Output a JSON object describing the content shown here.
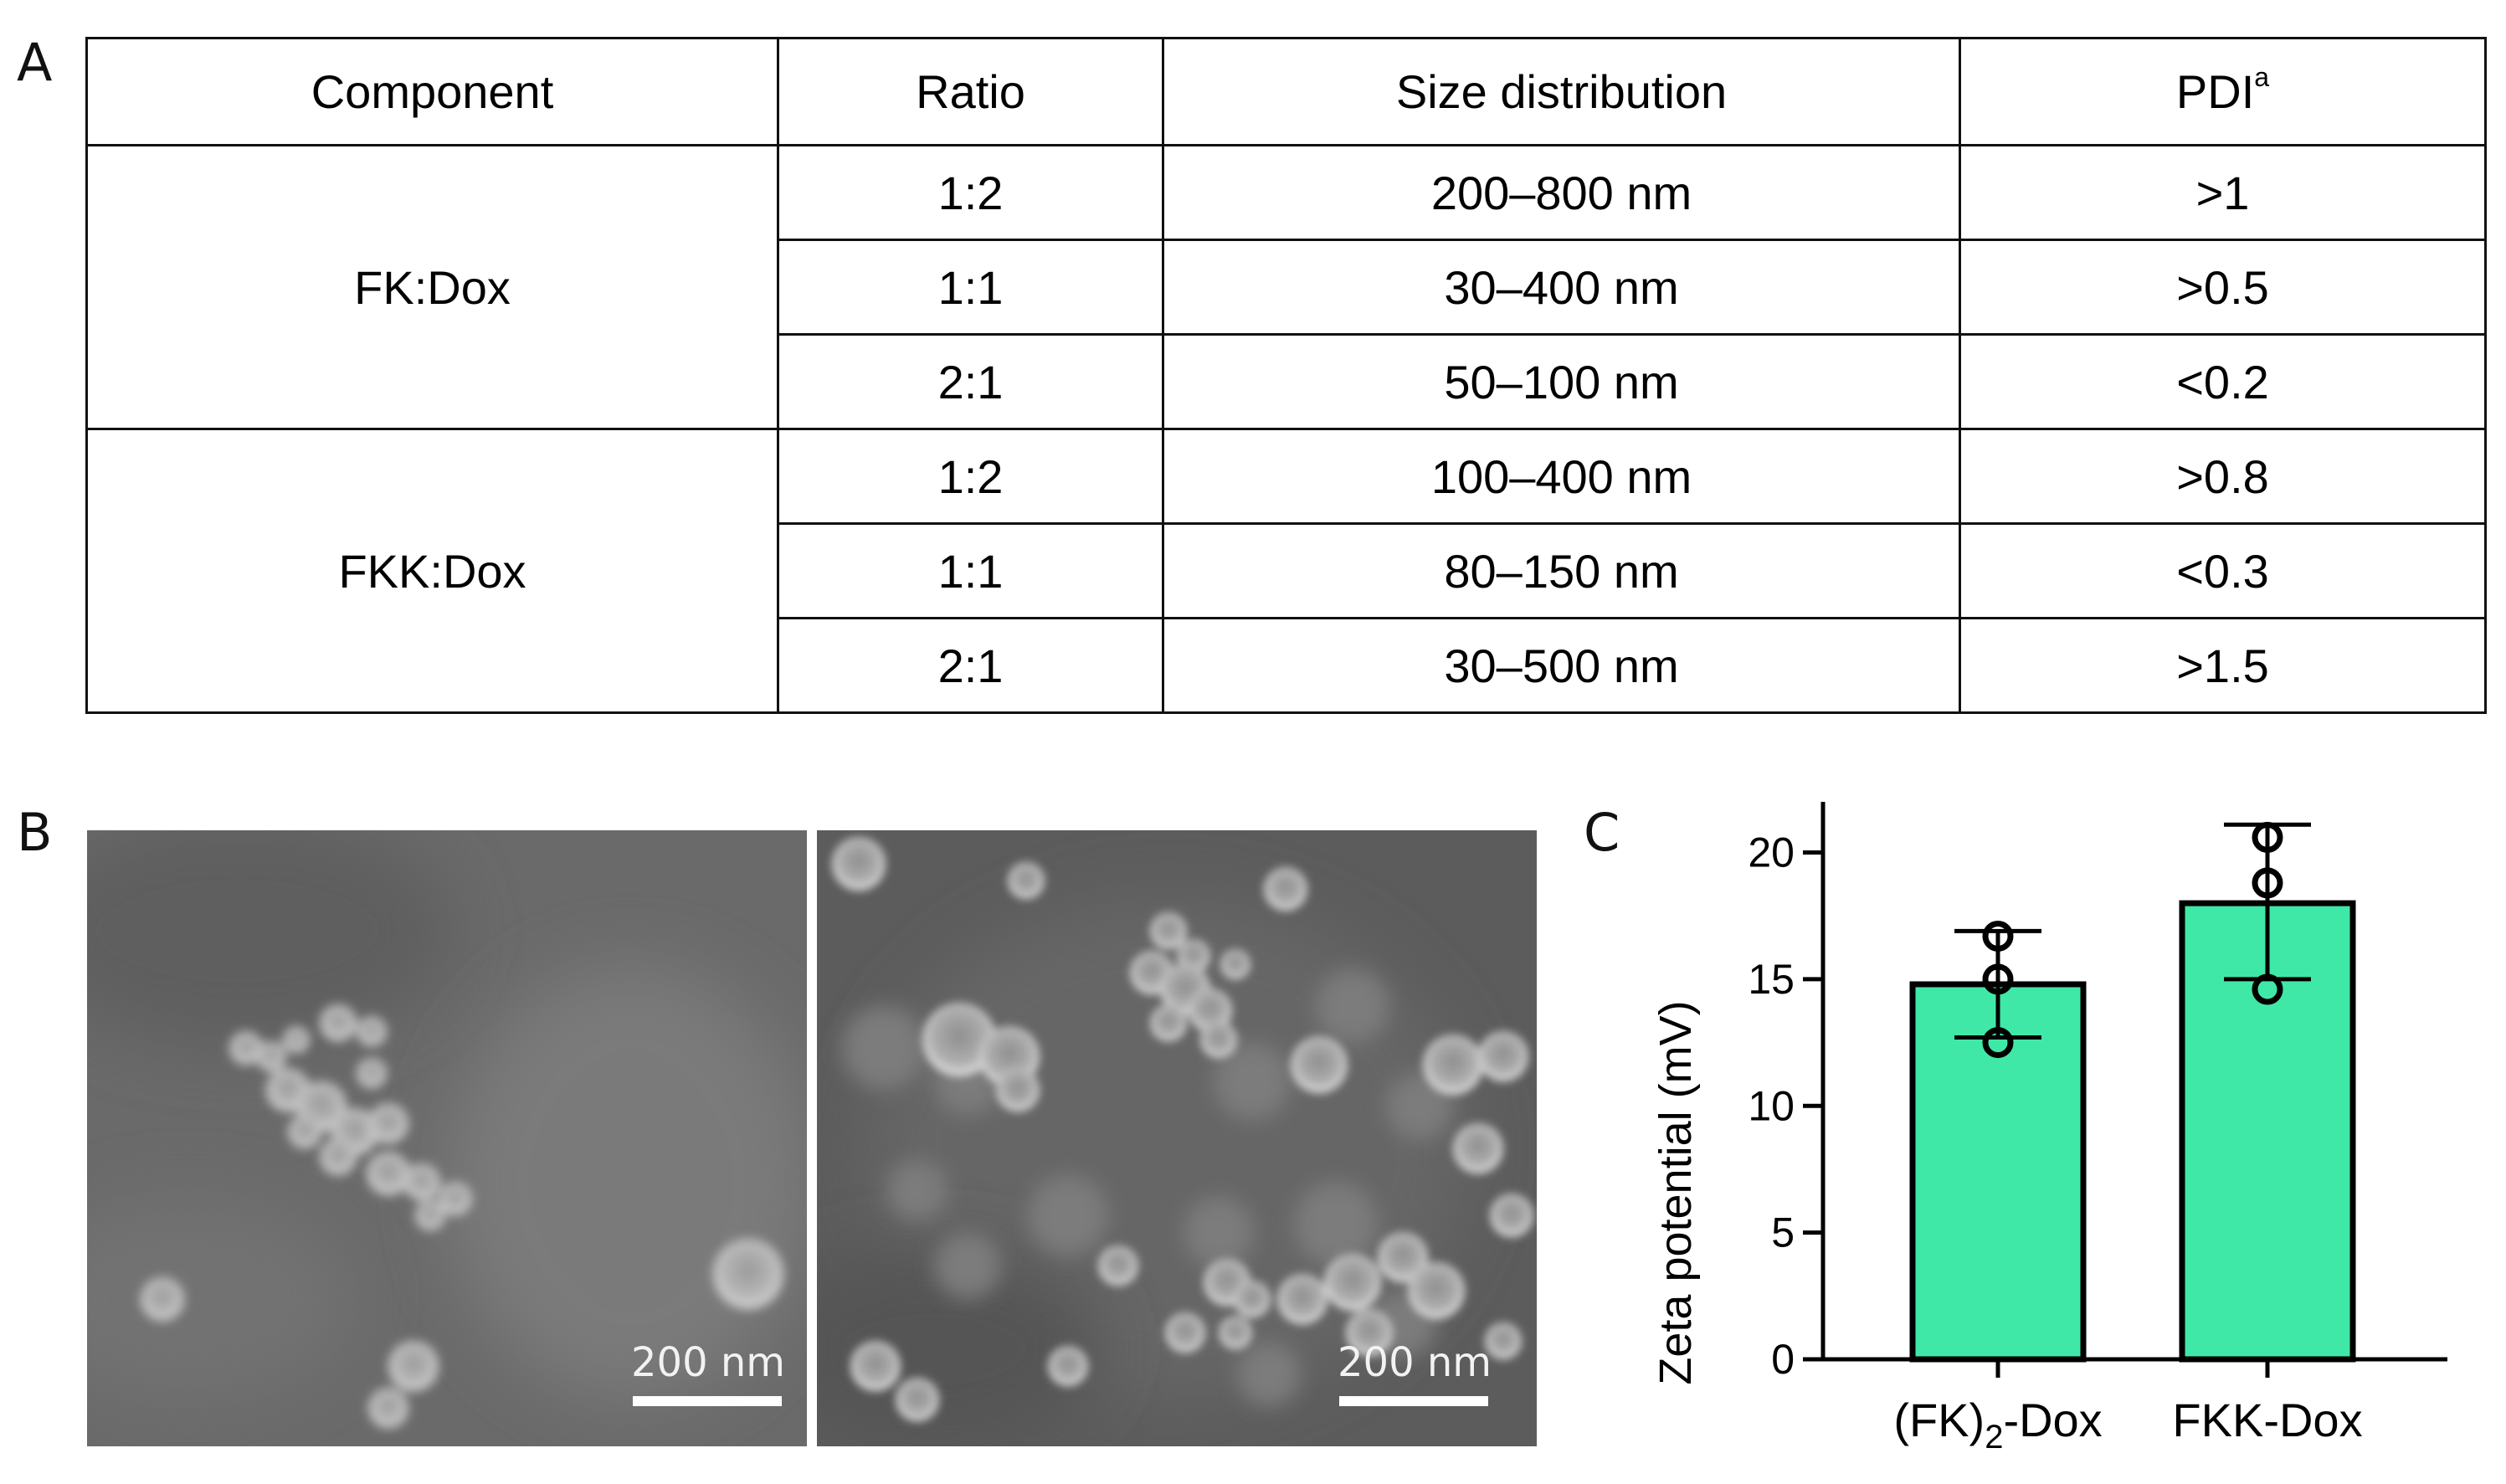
{
  "panels": {
    "a": "A",
    "b": "B",
    "c": "C"
  },
  "table": {
    "headers": {
      "component": "Component",
      "ratio": "Ratio",
      "size": "Size distribution",
      "pdi": "PDI",
      "pdi_note": "a"
    },
    "groups": [
      {
        "component": "FK:Dox",
        "rows": [
          {
            "ratio": "1:2",
            "size": "200–800 nm",
            "pdi": ">1"
          },
          {
            "ratio": "1:1",
            "size": "30–400 nm",
            "pdi": ">0.5"
          },
          {
            "ratio": "2:1",
            "size": "50–100 nm",
            "pdi": "<0.2"
          }
        ]
      },
      {
        "component": "FKK:Dox",
        "rows": [
          {
            "ratio": "1:2",
            "size": "100–400 nm",
            "pdi": ">0.8"
          },
          {
            "ratio": "1:1",
            "size": "80–150 nm",
            "pdi": "<0.3"
          },
          {
            "ratio": "2:1",
            "size": "30–500 nm",
            "pdi": ">1.5"
          }
        ]
      }
    ]
  },
  "sem": [
    {
      "scale_label": "200 nm"
    },
    {
      "scale_label": "200 nm"
    }
  ],
  "chart_data": {
    "type": "bar",
    "categories": [
      "(FK)2-Dox",
      "FKK-Dox"
    ],
    "category_labels": [
      {
        "main": "(FK)",
        "sub": "2",
        "rest": "-Dox"
      },
      {
        "main": "FKK-Dox",
        "sub": "",
        "rest": ""
      }
    ],
    "values": [
      14.8,
      18.0
    ],
    "error_low": [
      12.7,
      15.0
    ],
    "error_high": [
      16.9,
      21.1
    ],
    "points": [
      [
        16.7,
        15.0,
        12.5
      ],
      [
        20.6,
        18.8,
        14.6
      ]
    ],
    "ylabel": "Zeta potential (mV)",
    "ylim": [
      0,
      22
    ],
    "yticks": [
      0,
      5,
      10,
      15,
      20
    ],
    "bar_color": "#40e8a8",
    "edge_color": "#000000"
  }
}
